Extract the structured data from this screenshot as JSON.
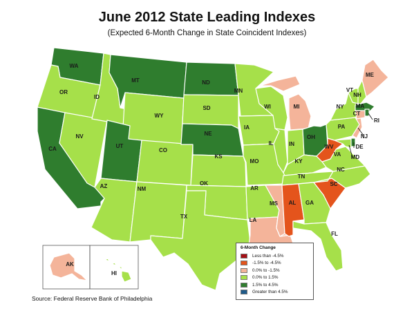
{
  "title": "June 2012 State Leading Indexes",
  "subtitle": "(Expected 6-Month Change in State Coincident Indexes)",
  "source": "Source: Federal Reserve Bank of Philadelphia",
  "legend": {
    "title": "6-Month Change",
    "items": [
      {
        "label": "Less than -4.5%",
        "color": "#a50f15"
      },
      {
        "label": "-1.5% to -4.5%",
        "color": "#e4541c"
      },
      {
        "label": "0.0% to -1.5%",
        "color": "#f4b49a"
      },
      {
        "label": "0.0% to  1.5%",
        "color": "#a6e04a"
      },
      {
        "label": "1.5% to  4.5%",
        "color": "#2f7d2e"
      },
      {
        "label": "Greater than 4.5%",
        "color": "#1f5b8a"
      }
    ]
  },
  "state_labels": [
    "WA",
    "OR",
    "CA",
    "ID",
    "NV",
    "MT",
    "WY",
    "UT",
    "AZ",
    "CO",
    "NM",
    "ND",
    "SD",
    "NE",
    "KS",
    "OK",
    "TX",
    "MN",
    "IA",
    "MO",
    "AR",
    "LA",
    "WI",
    "IL",
    "MI",
    "IN",
    "OH",
    "KY",
    "TN",
    "MS",
    "AL",
    "GA",
    "FL",
    "SC",
    "NC",
    "VA",
    "WV",
    "PA",
    "NY",
    "VT",
    "NH",
    "ME",
    "MA",
    "RI",
    "CT",
    "NJ",
    "DE",
    "MD",
    "AK",
    "HI"
  ]
}
